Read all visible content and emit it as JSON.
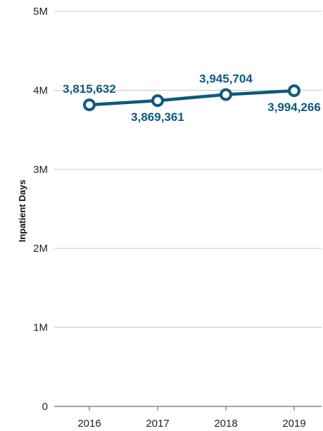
{
  "chart_data": {
    "type": "line",
    "categories": [
      "2016",
      "2017",
      "2018",
      "2019"
    ],
    "series": [
      {
        "values": [
          3815632,
          3869361,
          3945704,
          3994266
        ],
        "labels": [
          "3,815,632",
          "3,869,361",
          "3,945,704",
          "3,994,266"
        ],
        "label_positions": [
          "above",
          "below",
          "above",
          "below"
        ]
      }
    ],
    "ylabel": "Inpatient Days",
    "ylim": [
      0,
      5000000
    ],
    "y_ticks": [
      0,
      1000000,
      2000000,
      3000000,
      4000000,
      5000000
    ],
    "y_tick_labels": [
      "0",
      "1M",
      "2M",
      "3M",
      "4M",
      "5M"
    ],
    "grid": true,
    "legend": "none",
    "colors": {
      "series": "#0d5a7f",
      "grid": "#c8c8c8",
      "axis": "#8a8a8a"
    }
  }
}
